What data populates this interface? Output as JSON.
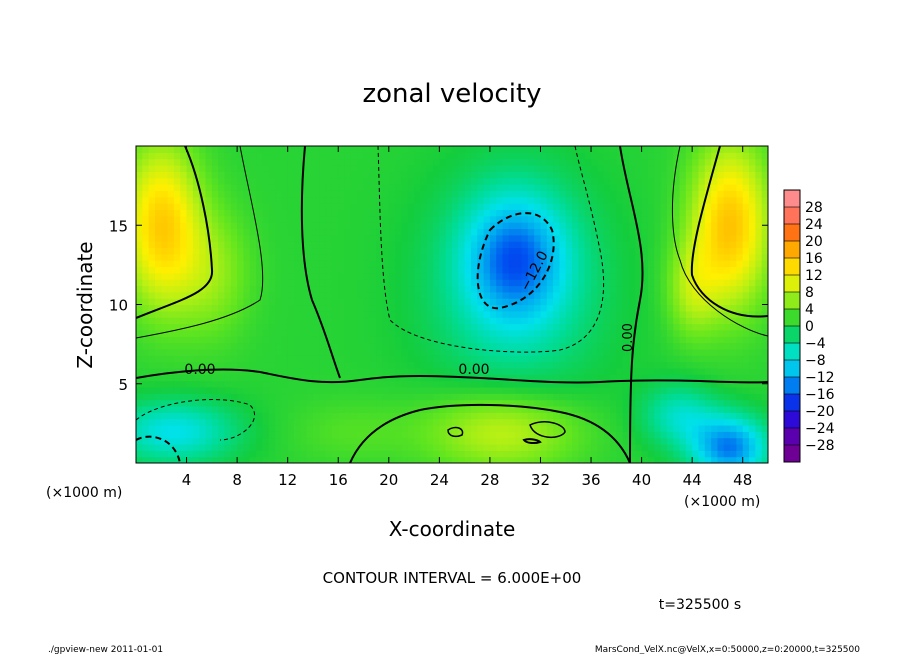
{
  "chart_data": {
    "type": "heatmap",
    "title": "zonal velocity",
    "xlabel": "X-coordinate",
    "ylabel": "Z-coordinate",
    "x_unit_label": "(×1000 m)",
    "y_unit_label": "(×1000 m)",
    "xlim": [
      0,
      50
    ],
    "ylim": [
      0,
      20
    ],
    "x_ticks": [
      4,
      8,
      12,
      16,
      20,
      24,
      28,
      32,
      36,
      40,
      44,
      48
    ],
    "y_ticks": [
      5,
      10,
      15
    ],
    "colorbar": {
      "levels": [
        28,
        24,
        20,
        16,
        12,
        8,
        4,
        0,
        -4,
        -8,
        -12,
        -16,
        -20,
        -24,
        -28
      ],
      "labels": [
        "28",
        "24",
        "20",
        "16",
        "12",
        "8",
        "4",
        "0",
        "−4",
        "−8",
        "−12",
        "−16",
        "−20",
        "−24",
        "−28"
      ]
    },
    "contour_labels": [
      "0.00",
      "0.00",
      "0.00",
      "−12.0"
    ],
    "contour_interval_text": "CONTOUR INTERVAL = 6.000E+00",
    "time_text": "t=325500 s",
    "field_blobs": [
      {
        "x": 2,
        "z": 15,
        "rx": 3,
        "rz": 5,
        "v": 15
      },
      {
        "x": 6,
        "z": 12,
        "rx": 3,
        "rz": 4,
        "v": 6
      },
      {
        "x": 47,
        "z": 15,
        "rx": 3,
        "rz": 5,
        "v": 16
      },
      {
        "x": 44,
        "z": 11,
        "rx": 2,
        "rz": 3,
        "v": 7
      },
      {
        "x": 30,
        "z": 13,
        "rx": 4,
        "rz": 4,
        "v": -11
      },
      {
        "x": 30,
        "z": 11,
        "rx": 7,
        "rz": 7,
        "v": -5
      },
      {
        "x": 3,
        "z": 2,
        "rx": 5,
        "rz": 2,
        "v": -8
      },
      {
        "x": 47,
        "z": 1,
        "rx": 3,
        "rz": 2,
        "v": -14
      },
      {
        "x": 43,
        "z": 3,
        "rx": 3,
        "rz": 2,
        "v": -6
      },
      {
        "x": 29,
        "z": 2,
        "rx": 6,
        "rz": 2.5,
        "v": 9
      },
      {
        "x": 17,
        "z": 2,
        "rx": 5,
        "rz": 2,
        "v": 3
      }
    ]
  },
  "footer": {
    "left": "./gpview-new   2011-01-01",
    "right": "MarsCond_VelX.nc@VelX,x=0:50000,z=0:20000,t=325500"
  }
}
